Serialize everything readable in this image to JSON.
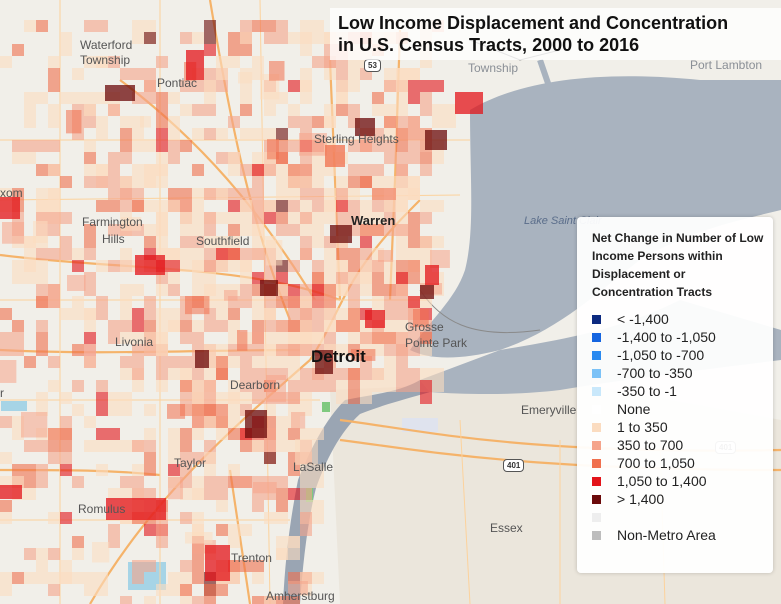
{
  "title": {
    "line1": "Low Income Displacement and Concentration",
    "line2": "in U.S. Census Tracts, 2000 to 2016"
  },
  "places": {
    "waterford": "Waterford",
    "waterford_township": "Township",
    "pontiac": "Pontiac",
    "township": "Township",
    "port_lambton": "Port Lambton",
    "sterling_heights": "Sterling Heights",
    "wixom": "xom",
    "warren": "Warren",
    "farmington": "Farmington",
    "hills": "Hills",
    "southfield": "Southfield",
    "lake_st_clair": "Lake Saint Clair",
    "livonia": "Livonia",
    "grosse": "Grosse",
    "pointe_park": "Pointe Park",
    "detroit": "Detroit",
    "dearborn": "Dearborn",
    "emeryville": "Emeryville",
    "taylor": "Taylor",
    "lasalle": "LaSalle",
    "romulus": "Romulus",
    "essex": "Essex",
    "trenton": "Trenton",
    "amherstburg": "Amherstburg",
    "edge_r": "r"
  },
  "shields": {
    "route_53": "53",
    "hwy_401_a": "401",
    "hwy_401_b": "401"
  },
  "legend": {
    "title": "Net Change in Number of Low Income Persons within Displacement or Concentration Tracts",
    "items": [
      {
        "label": "< -1,400",
        "color": "#0d2a80"
      },
      {
        "label": "-1,400 to -1,050",
        "color": "#1565e0"
      },
      {
        "label": "-1,050 to -700",
        "color": "#2a8af0"
      },
      {
        "label": "-700 to -350",
        "color": "#7cc2f7"
      },
      {
        "label": "-350 to -1",
        "color": "#c9e8fb"
      },
      {
        "label": "None",
        "color": "#ffffff"
      },
      {
        "label": "1 to 350",
        "color": "#fbdcc0"
      },
      {
        "label": "350 to 700",
        "color": "#f5a48b"
      },
      {
        "label": "700 to 1,050",
        "color": "#f0704e"
      },
      {
        "label": "1,050 to 1,400",
        "color": "#e3141a"
      },
      {
        "label": "> 1,400",
        "color": "#6b0a0a"
      }
    ],
    "extra_items": [
      {
        "label": "",
        "color": "#eeeeee"
      },
      {
        "label": "Non-Metro Area",
        "color": "#bdbdbd"
      }
    ]
  },
  "colors": {
    "land": "#f1efe9",
    "water": "#a9b3bf",
    "road": "#f5b36a",
    "river": "#9aa5b3"
  }
}
